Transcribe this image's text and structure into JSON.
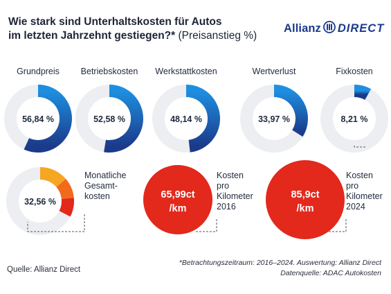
{
  "header": {
    "title_line1": "Wie stark sind Unterhaltskosten für Autos",
    "title_line2": "im letzten Jahrzehnt gestiegen?*",
    "title_suffix": " (Preisanstieg %)",
    "logo_text": "Allianz",
    "logo_text2": "DIRECT"
  },
  "colors": {
    "dark_blue": "#1b3a8a",
    "light_blue": "#1e8fe0",
    "track": "#eceef1",
    "orange": "#f5a623",
    "orange_red": "#f26a1b",
    "red": "#e3281c"
  },
  "chart_data": {
    "type": "donut",
    "donuts": [
      {
        "label": "Grundpreis",
        "value": 56.84,
        "value_label": "56,84 %"
      },
      {
        "label": "Betriebskosten",
        "value": 52.58,
        "value_label": "52,58 %"
      },
      {
        "label": "Werkstattkosten",
        "value": 48.14,
        "value_label": "48,14 %"
      },
      {
        "label": "Wertverlust",
        "value": 33.97,
        "value_label": "33,97 %"
      },
      {
        "label": "Fixkosten",
        "value": 8.21,
        "value_label": "8,21 %"
      }
    ],
    "total": {
      "label_lines": [
        "Monatliche",
        "Gesamt-",
        "kosten"
      ],
      "value": 32.56,
      "value_label": "32,56 %"
    },
    "per_km": [
      {
        "label_lines": [
          "Kosten",
          "pro",
          "Kilometer",
          "2016"
        ],
        "value": 65.99,
        "value_label_lines": [
          "65,99ct",
          "/km"
        ]
      },
      {
        "label_lines": [
          "Kosten",
          "pro",
          "Kilometer",
          "2024"
        ],
        "value": 85.9,
        "value_label_lines": [
          "85,9ct",
          "/km"
        ]
      }
    ]
  },
  "footer": {
    "source": "Quelle: Allianz Direct",
    "note1": "*Betrachtungszeitraum: 2016–2024. Auswertung: Allianz Direct",
    "note2": "Datenquelle: ADAC Autokosten"
  }
}
